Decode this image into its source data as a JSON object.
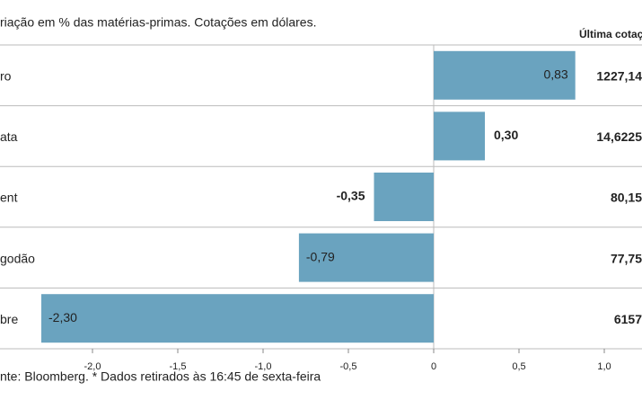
{
  "chart_data": {
    "type": "bar",
    "orientation": "horizontal",
    "subtitle": "riação em % das matérias-primas. Cotações em dólares.",
    "categories": [
      "ro",
      "ata",
      "ent",
      "godão",
      "bre"
    ],
    "values": [
      0.83,
      0.3,
      -0.35,
      -0.79,
      -2.3
    ],
    "value_labels": [
      "0,83",
      "0,30",
      "-0,35",
      "-0,79",
      "-2,30"
    ],
    "color": "#6aa3bf",
    "xlim": [
      -2.5,
      1.2
    ],
    "xticks": [
      {
        "value": -2.0,
        "label": "-2,0"
      },
      {
        "value": -1.5,
        "label": "-1,5"
      },
      {
        "value": -1.0,
        "label": "-1,0"
      },
      {
        "value": -0.5,
        "label": "-0,5"
      },
      0,
      {
        "value": 0.5,
        "label": "0,5"
      },
      {
        "value": 1.0,
        "label": "1,0"
      }
    ],
    "last_quote_header": "Última cotaç",
    "last_quotes": [
      "1227,14",
      "14,6225",
      "80,15",
      "77,75",
      "6157"
    ],
    "source": "nte: Bloomberg.  * Dados retirados às 16:45 de sexta-feira"
  }
}
